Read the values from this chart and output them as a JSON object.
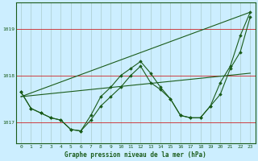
{
  "background_color": "#cceeff",
  "grid_color": "#aacccc",
  "line_color": "#1a5c1a",
  "red_line_color": "#cc2222",
  "title": "Graphe pression niveau de la mer (hPa)",
  "ylim": [
    1016.55,
    1019.55
  ],
  "xlim": [
    -0.5,
    23.5
  ],
  "yticks": [
    1017,
    1018,
    1019
  ],
  "xticks": [
    0,
    1,
    2,
    3,
    4,
    5,
    6,
    7,
    8,
    9,
    10,
    11,
    12,
    13,
    14,
    15,
    16,
    17,
    18,
    19,
    20,
    21,
    22,
    23
  ],
  "series1_x": [
    0,
    1,
    2,
    3,
    4,
    5,
    6,
    7,
    8,
    9,
    10,
    11,
    12,
    13,
    14,
    15,
    16,
    17,
    18,
    19,
    20,
    21,
    22,
    23
  ],
  "series1_y": [
    1017.65,
    1017.3,
    1017.2,
    1017.1,
    1017.05,
    1016.85,
    1016.82,
    1017.05,
    1017.35,
    1017.55,
    1017.75,
    1018.0,
    1018.2,
    1017.85,
    1017.7,
    1017.5,
    1017.15,
    1017.1,
    1017.1,
    1017.35,
    1017.6,
    1018.15,
    1018.5,
    1019.25
  ],
  "series2_x": [
    0,
    1,
    2,
    3,
    4,
    5,
    6,
    7,
    8,
    9,
    10,
    11,
    12,
    13,
    14,
    15,
    16,
    17,
    18,
    19,
    20,
    21,
    22,
    23
  ],
  "series2_y": [
    1017.65,
    1017.3,
    1017.2,
    1017.1,
    1017.05,
    1016.85,
    1016.82,
    1017.15,
    1017.55,
    1017.75,
    1018.0,
    1018.15,
    1018.3,
    1018.05,
    1017.75,
    1017.5,
    1017.15,
    1017.1,
    1017.1,
    1017.35,
    1017.85,
    1018.2,
    1018.85,
    1019.35
  ],
  "series3_x": [
    0,
    23
  ],
  "series3_y": [
    1017.55,
    1019.35
  ],
  "series4_x": [
    0,
    23
  ],
  "series4_y": [
    1017.55,
    1018.05
  ]
}
